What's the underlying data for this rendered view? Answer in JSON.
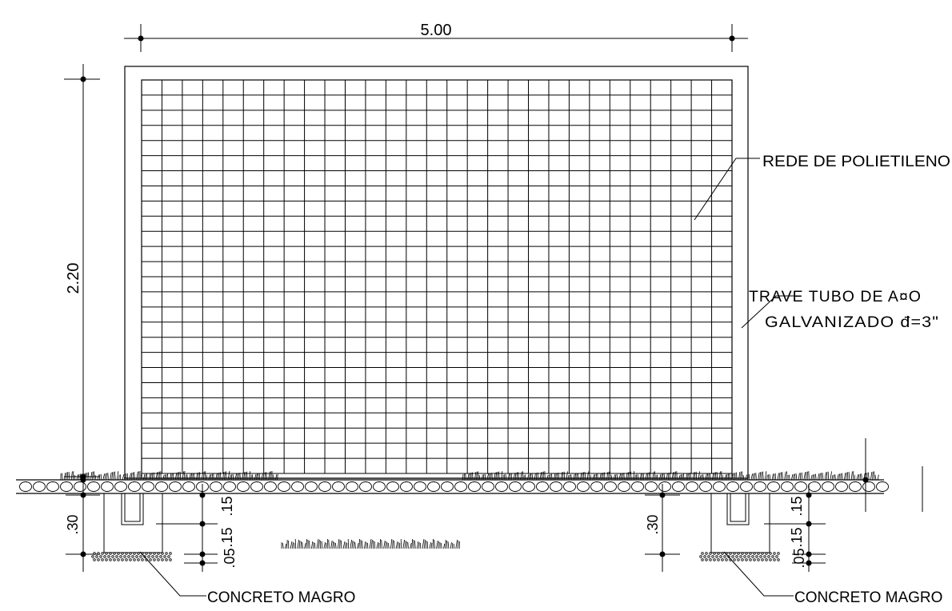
{
  "dimensions": {
    "width_label": "5.00",
    "height_label": "2.20",
    "footing_left_depth": ".30",
    "footing_left_stack_a": ".15",
    "footing_left_stack_b": ".15",
    "footing_left_base": ".05",
    "footing_right_depth": ".30",
    "footing_right_stack_a": ".15",
    "footing_right_stack_b": ".15",
    "footing_right_base": ".05"
  },
  "annotations": {
    "net": "REDE DE POLIETILENO",
    "crossbar_line1": "TRAVE TUBO DE A¤O",
    "crossbar_line2": "GALVANIZADO đ=3\"",
    "concrete_left": "CONCRETO MAGRO",
    "concrete_right": "CONCRETO MAGRO"
  },
  "colors": {
    "line": "#000000",
    "background": "#ffffff"
  }
}
